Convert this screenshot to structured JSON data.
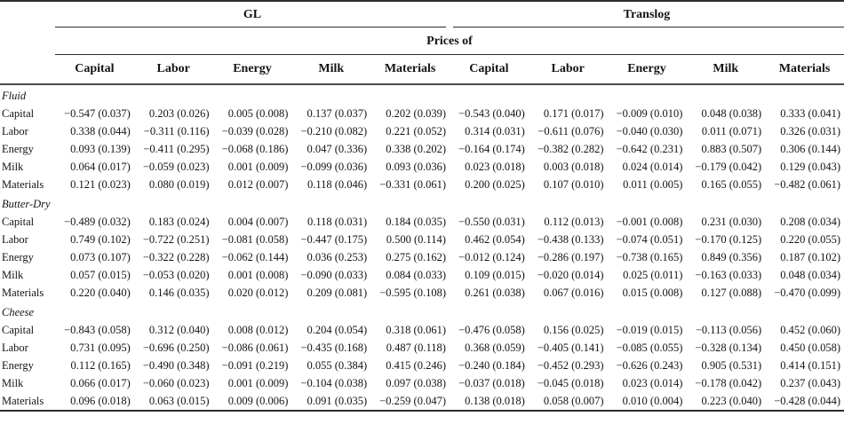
{
  "header": {
    "group_gl": "GL",
    "group_translog": "Translog",
    "prices_of": "Prices of",
    "columns": [
      "Capital",
      "Labor",
      "Energy",
      "Milk",
      "Materials"
    ]
  },
  "sections": [
    {
      "name": "Fluid",
      "rows": [
        {
          "label": "Capital",
          "gl": [
            "−0.547 (0.037)",
            "0.203 (0.026)",
            "0.005 (0.008)",
            "0.137 (0.037)",
            "0.202 (0.039)"
          ],
          "translog": [
            "−0.543 (0.040)",
            "0.171 (0.017)",
            "−0.009 (0.010)",
            "0.048 (0.038)",
            "0.333 (0.041)"
          ]
        },
        {
          "label": "Labor",
          "gl": [
            "0.338 (0.044)",
            "−0.311 (0.116)",
            "−0.039 (0.028)",
            "−0.210 (0.082)",
            "0.221 (0.052)"
          ],
          "translog": [
            "0.314 (0.031)",
            "−0.611 (0.076)",
            "−0.040 (0.030)",
            "0.011 (0.071)",
            "0.326 (0.031)"
          ]
        },
        {
          "label": "Energy",
          "gl": [
            "0.093 (0.139)",
            "−0.411 (0.295)",
            "−0.068 (0.186)",
            "0.047 (0.336)",
            "0.338 (0.202)"
          ],
          "translog": [
            "−0.164 (0.174)",
            "−0.382 (0.282)",
            "−0.642 (0.231)",
            "0.883 (0.507)",
            "0.306 (0.144)"
          ]
        },
        {
          "label": "Milk",
          "gl": [
            "0.064 (0.017)",
            "−0.059 (0.023)",
            "0.001 (0.009)",
            "−0.099 (0.036)",
            "0.093 (0.036)"
          ],
          "translog": [
            "0.023 (0.018)",
            "0.003 (0.018)",
            "0.024 (0.014)",
            "−0.179 (0.042)",
            "0.129 (0.043)"
          ]
        },
        {
          "label": "Materials",
          "gl": [
            "0.121 (0.023)",
            "0.080 (0.019)",
            "0.012 (0.007)",
            "0.118 (0.046)",
            "−0.331 (0.061)"
          ],
          "translog": [
            "0.200 (0.025)",
            "0.107 (0.010)",
            "0.011 (0.005)",
            "0.165 (0.055)",
            "−0.482 (0.061)"
          ]
        }
      ]
    },
    {
      "name": "Butter-Dry",
      "rows": [
        {
          "label": "Capital",
          "gl": [
            "−0.489 (0.032)",
            "0.183 (0.024)",
            "0.004 (0.007)",
            "0.118 (0.031)",
            "0.184 (0.035)"
          ],
          "translog": [
            "−0.550 (0.031)",
            "0.112 (0.013)",
            "−0.001 (0.008)",
            "0.231 (0.030)",
            "0.208 (0.034)"
          ]
        },
        {
          "label": "Labor",
          "gl": [
            "0.749 (0.102)",
            "−0.722 (0.251)",
            "−0.081 (0.058)",
            "−0.447 (0.175)",
            "0.500 (0.114)"
          ],
          "translog": [
            "0.462 (0.054)",
            "−0.438 (0.133)",
            "−0.074 (0.051)",
            "−0.170 (0.125)",
            "0.220 (0.055)"
          ]
        },
        {
          "label": "Energy",
          "gl": [
            "0.073 (0.107)",
            "−0.322 (0.228)",
            "−0.062 (0.144)",
            "0.036 (0.253)",
            "0.275 (0.162)"
          ],
          "translog": [
            "−0.012 (0.124)",
            "−0.286 (0.197)",
            "−0.738 (0.165)",
            "0.849 (0.356)",
            "0.187 (0.102)"
          ]
        },
        {
          "label": "Milk",
          "gl": [
            "0.057 (0.015)",
            "−0.053 (0.020)",
            "0.001 (0.008)",
            "−0.090 (0.033)",
            "0.084 (0.033)"
          ],
          "translog": [
            "0.109 (0.015)",
            "−0.020 (0.014)",
            "0.025 (0.011)",
            "−0.163 (0.033)",
            "0.048 (0.034)"
          ]
        },
        {
          "label": "Materials",
          "gl": [
            "0.220 (0.040)",
            "0.146 (0.035)",
            "0.020 (0.012)",
            "0.209 (0.081)",
            "−0.595 (0.108)"
          ],
          "translog": [
            "0.261 (0.038)",
            "0.067 (0.016)",
            "0.015 (0.008)",
            "0.127 (0.088)",
            "−0.470 (0.099)"
          ]
        }
      ]
    },
    {
      "name": "Cheese",
      "rows": [
        {
          "label": "Capital",
          "gl": [
            "−0.843 (0.058)",
            "0.312 (0.040)",
            "0.008 (0.012)",
            "0.204 (0.054)",
            "0.318 (0.061)"
          ],
          "translog": [
            "−0.476 (0.058)",
            "0.156 (0.025)",
            "−0.019 (0.015)",
            "−0.113 (0.056)",
            "0.452 (0.060)"
          ]
        },
        {
          "label": "Labor",
          "gl": [
            "0.731 (0.095)",
            "−0.696 (0.250)",
            "−0.086 (0.061)",
            "−0.435 (0.168)",
            "0.487 (0.118)"
          ],
          "translog": [
            "0.368 (0.059)",
            "−0.405 (0.141)",
            "−0.085 (0.055)",
            "−0.328 (0.134)",
            "0.450 (0.058)"
          ]
        },
        {
          "label": "Energy",
          "gl": [
            "0.112 (0.165)",
            "−0.490 (0.348)",
            "−0.091 (0.219)",
            "0.055 (0.384)",
            "0.415 (0.246)"
          ],
          "translog": [
            "−0.240 (0.184)",
            "−0.452 (0.293)",
            "−0.626 (0.243)",
            "0.905 (0.531)",
            "0.414 (0.151)"
          ]
        },
        {
          "label": "Milk",
          "gl": [
            "0.066 (0.017)",
            "−0.060 (0.023)",
            "0.001 (0.009)",
            "−0.104 (0.038)",
            "0.097 (0.038)"
          ],
          "translog": [
            "−0.037 (0.018)",
            "−0.045 (0.018)",
            "0.023 (0.014)",
            "−0.178 (0.042)",
            "0.237 (0.043)"
          ]
        },
        {
          "label": "Materials",
          "gl": [
            "0.096 (0.018)",
            "0.063 (0.015)",
            "0.009 (0.006)",
            "0.091 (0.035)",
            "−0.259 (0.047)"
          ],
          "translog": [
            "0.138 (0.018)",
            "0.058 (0.007)",
            "0.010 (0.004)",
            "0.223 (0.040)",
            "−0.428 (0.044)"
          ]
        }
      ]
    }
  ]
}
